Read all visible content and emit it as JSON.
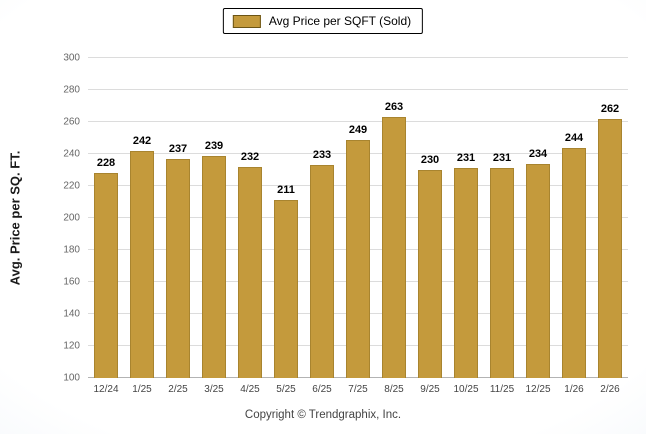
{
  "chart_data": {
    "type": "bar",
    "legend_label": "Avg Price per SQFT (Sold)",
    "ylabel": "Avg. Price per SQ. FT.",
    "categories": [
      "12/24",
      "1/25",
      "2/25",
      "3/25",
      "4/25",
      "5/25",
      "6/25",
      "7/25",
      "8/25",
      "9/25",
      "10/25",
      "11/25",
      "12/25",
      "1/26",
      "2/26"
    ],
    "values": [
      228,
      242,
      237,
      239,
      232,
      211,
      233,
      249,
      263,
      230,
      231,
      231,
      234,
      244,
      262
    ],
    "ylim": [
      100,
      300
    ],
    "ytick_step": 20,
    "grid": true,
    "legend_position": "top",
    "bar_color": "#C49A3C",
    "bar_border_color": "#A8842F",
    "gridline_color": "#dcdcdc"
  },
  "footer": {
    "copyright": "Copyright © Trendgraphix, Inc."
  }
}
